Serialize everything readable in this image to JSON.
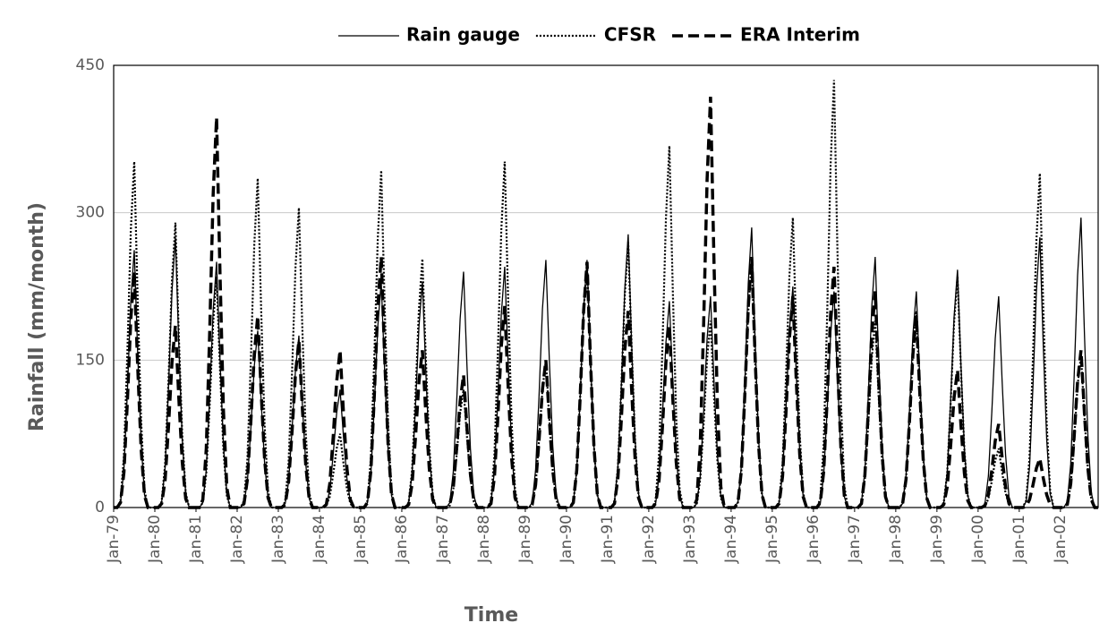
{
  "chart_data": {
    "type": "line",
    "ylabel": "Rainfall (mm/month)",
    "xlabel": "Time",
    "ylim": [
      0,
      450
    ],
    "yticks": [
      0,
      150,
      300,
      450
    ],
    "grid": true,
    "legend": "top",
    "categories": [
      "Jan-79",
      null,
      null,
      null,
      null,
      null,
      null,
      null,
      null,
      null,
      null,
      null,
      "Jan-80",
      null,
      null,
      null,
      null,
      null,
      null,
      null,
      null,
      null,
      null,
      null,
      "Jan-81",
      null,
      null,
      null,
      null,
      null,
      null,
      null,
      null,
      null,
      null,
      null,
      "Jan-82",
      null,
      null,
      null,
      null,
      null,
      null,
      null,
      null,
      null,
      null,
      null,
      "Jan-83",
      null,
      null,
      null,
      null,
      null,
      null,
      null,
      null,
      null,
      null,
      null,
      "Jan-84",
      null,
      null,
      null,
      null,
      null,
      null,
      null,
      null,
      null,
      null,
      null,
      "Jan-85",
      null,
      null,
      null,
      null,
      null,
      null,
      null,
      null,
      null,
      null,
      null,
      "Jan-86",
      null,
      null,
      null,
      null,
      null,
      null,
      null,
      null,
      null,
      null,
      null,
      "Jan-87",
      null,
      null,
      null,
      null,
      null,
      null,
      null,
      null,
      null,
      null,
      null,
      "Jan-88",
      null,
      null,
      null,
      null,
      null,
      null,
      null,
      null,
      null,
      null,
      null,
      "Jan-89",
      null,
      null,
      null,
      null,
      null,
      null,
      null,
      null,
      null,
      null,
      null,
      "Jan-90",
      null,
      null,
      null,
      null,
      null,
      null,
      null,
      null,
      null,
      null,
      null,
      "Jan-91",
      null,
      null,
      null,
      null,
      null,
      null,
      null,
      null,
      null,
      null,
      null,
      "Jan-92",
      null,
      null,
      null,
      null,
      null,
      null,
      null,
      null,
      null,
      null,
      null,
      "Jan-93",
      null,
      null,
      null,
      null,
      null,
      null,
      null,
      null,
      null,
      null,
      null,
      "Jan-94",
      null,
      null,
      null,
      null,
      null,
      null,
      null,
      null,
      null,
      null,
      null,
      "Jan-95",
      null,
      null,
      null,
      null,
      null,
      null,
      null,
      null,
      null,
      null,
      null,
      "Jan-96",
      null,
      null,
      null,
      null,
      null,
      null,
      null,
      null,
      null,
      null,
      null,
      "Jan-97",
      null,
      null,
      null,
      null,
      null,
      null,
      null,
      null,
      null,
      null,
      null,
      "Jan-98",
      null,
      null,
      null,
      null,
      null,
      null,
      null,
      null,
      null,
      null,
      null,
      "Jan-99",
      null,
      null,
      null,
      null,
      null,
      null,
      null,
      null,
      null,
      null,
      null,
      "Jan-00",
      null,
      null,
      null,
      null,
      null,
      null,
      null,
      null,
      null,
      null,
      null,
      "Jan-01",
      null,
      null,
      null,
      null,
      null,
      null,
      null,
      null,
      null,
      null,
      null,
      "Jan-02",
      null,
      null,
      null,
      null,
      null,
      null,
      null,
      null,
      null,
      null,
      null
    ],
    "series": [
      {
        "name": "Rain gauge",
        "color": "#000000",
        "style": "solid",
        "values": [
          0,
          0,
          5,
          39,
          118,
          210,
          262,
          157,
          66,
          13,
          0,
          0,
          0,
          0,
          6,
          41,
          124,
          220,
          275,
          165,
          69,
          14,
          0,
          0,
          0,
          0,
          5,
          38,
          113,
          200,
          250,
          150,
          63,
          13,
          0,
          0,
          0,
          0,
          4,
          27,
          81,
          144,
          180,
          108,
          45,
          9,
          0,
          0,
          0,
          0,
          4,
          26,
          79,
          140,
          175,
          105,
          44,
          9,
          0,
          0,
          0,
          0,
          2,
          18,
          54,
          96,
          120,
          72,
          30,
          6,
          0,
          0,
          0,
          0,
          5,
          35,
          104,
          184,
          230,
          138,
          58,
          12,
          0,
          0,
          0,
          0,
          5,
          35,
          104,
          184,
          230,
          138,
          58,
          12,
          0,
          0,
          0,
          0,
          5,
          36,
          108,
          192,
          240,
          144,
          60,
          12,
          0,
          0,
          0,
          0,
          5,
          37,
          110,
          196,
          245,
          147,
          61,
          12,
          0,
          0,
          0,
          0,
          5,
          38,
          113,
          202,
          252,
          151,
          63,
          13,
          0,
          0,
          0,
          0,
          5,
          38,
          113,
          202,
          252,
          151,
          63,
          13,
          0,
          0,
          0,
          0,
          6,
          42,
          125,
          222,
          278,
          167,
          70,
          14,
          0,
          0,
          0,
          0,
          4,
          32,
          95,
          168,
          210,
          126,
          53,
          11,
          0,
          0,
          0,
          0,
          4,
          32,
          97,
          172,
          215,
          129,
          54,
          11,
          0,
          0,
          0,
          0,
          6,
          43,
          128,
          228,
          285,
          171,
          71,
          14,
          0,
          0,
          0,
          0,
          5,
          34,
          101,
          180,
          225,
          135,
          56,
          11,
          0,
          0,
          0,
          0,
          4,
          33,
          99,
          176,
          220,
          132,
          55,
          11,
          0,
          0,
          0,
          0,
          5,
          38,
          115,
          204,
          255,
          153,
          64,
          13,
          0,
          0,
          0,
          0,
          4,
          33,
          99,
          176,
          220,
          132,
          55,
          11,
          0,
          0,
          0,
          0,
          5,
          36,
          109,
          194,
          242,
          145,
          61,
          12,
          0,
          0,
          0,
          0,
          4,
          32,
          97,
          172,
          215,
          129,
          54,
          11,
          0,
          0,
          0,
          0,
          6,
          41,
          124,
          220,
          275,
          165,
          69,
          14,
          0,
          0,
          0,
          0,
          6,
          44,
          133,
          236,
          295,
          177,
          74,
          15,
          0,
          0
        ]
      },
      {
        "name": "CFSR",
        "color": "#000000",
        "style": "dotted",
        "values": [
          0,
          0,
          7,
          53,
          158,
          282,
          352,
          211,
          88,
          18,
          0,
          0,
          0,
          0,
          6,
          44,
          131,
          232,
          290,
          174,
          73,
          15,
          0,
          0,
          0,
          0,
          5,
          35,
          106,
          188,
          235,
          141,
          59,
          12,
          0,
          0,
          0,
          0,
          7,
          50,
          151,
          268,
          335,
          201,
          84,
          17,
          0,
          0,
          0,
          0,
          6,
          46,
          137,
          244,
          305,
          183,
          76,
          15,
          0,
          0,
          0,
          0,
          2,
          11,
          34,
          60,
          75,
          45,
          19,
          4,
          0,
          0,
          0,
          0,
          7,
          51,
          154,
          274,
          343,
          206,
          86,
          17,
          0,
          0,
          0,
          0,
          5,
          38,
          114,
          202,
          253,
          152,
          63,
          13,
          0,
          0,
          0,
          0,
          2,
          18,
          54,
          96,
          120,
          72,
          30,
          6,
          0,
          0,
          0,
          0,
          7,
          53,
          158,
          282,
          352,
          211,
          88,
          18,
          0,
          0,
          0,
          0,
          3,
          23,
          68,
          120,
          150,
          90,
          38,
          8,
          0,
          0,
          0,
          0,
          5,
          38,
          113,
          200,
          250,
          150,
          63,
          13,
          0,
          0,
          0,
          0,
          5,
          41,
          122,
          216,
          270,
          162,
          68,
          14,
          0,
          0,
          0,
          0,
          7,
          55,
          166,
          294,
          368,
          221,
          92,
          18,
          0,
          0,
          0,
          0,
          4,
          29,
          86,
          152,
          190,
          114,
          48,
          10,
          0,
          0,
          0,
          0,
          5,
          38,
          113,
          200,
          250,
          150,
          63,
          13,
          0,
          0,
          0,
          0,
          6,
          44,
          133,
          236,
          295,
          177,
          74,
          15,
          0,
          0,
          0,
          0,
          9,
          65,
          196,
          348,
          435,
          261,
          109,
          22,
          0,
          0,
          0,
          0,
          4,
          29,
          86,
          152,
          190,
          114,
          48,
          10,
          0,
          0,
          0,
          0,
          4,
          30,
          90,
          160,
          200,
          120,
          50,
          10,
          0,
          0,
          0,
          0,
          5,
          35,
          106,
          188,
          235,
          141,
          59,
          12,
          0,
          0,
          0,
          0,
          1,
          9,
          27,
          48,
          60,
          36,
          15,
          3,
          0,
          0,
          0,
          0,
          7,
          51,
          153,
          272,
          340,
          204,
          85,
          17,
          0,
          0,
          0,
          0,
          3,
          23,
          70,
          124,
          155,
          93,
          39,
          8,
          0,
          0
        ]
      },
      {
        "name": "ERA Interim",
        "color": "#000000",
        "style": "dashed",
        "values": [
          0,
          0,
          5,
          36,
          108,
          192,
          240,
          144,
          60,
          12,
          0,
          0,
          0,
          0,
          4,
          28,
          83,
          148,
          185,
          111,
          46,
          9,
          0,
          0,
          0,
          0,
          8,
          60,
          179,
          318,
          397,
          238,
          99,
          20,
          0,
          0,
          0,
          0,
          4,
          29,
          88,
          156,
          195,
          117,
          49,
          10,
          0,
          0,
          0,
          0,
          3,
          26,
          77,
          136,
          170,
          102,
          43,
          9,
          0,
          0,
          0,
          0,
          3,
          24,
          72,
          128,
          160,
          96,
          40,
          8,
          0,
          0,
          0,
          0,
          5,
          38,
          115,
          204,
          255,
          153,
          64,
          13,
          0,
          0,
          0,
          0,
          3,
          24,
          72,
          128,
          160,
          96,
          40,
          8,
          0,
          0,
          0,
          0,
          3,
          20,
          61,
          108,
          135,
          81,
          34,
          7,
          0,
          0,
          0,
          0,
          4,
          31,
          92,
          164,
          205,
          123,
          51,
          10,
          0,
          0,
          0,
          0,
          3,
          23,
          68,
          120,
          150,
          90,
          38,
          8,
          0,
          0,
          0,
          0,
          5,
          38,
          113,
          200,
          250,
          150,
          63,
          13,
          0,
          0,
          0,
          0,
          4,
          30,
          90,
          160,
          200,
          120,
          50,
          10,
          0,
          0,
          0,
          0,
          4,
          28,
          83,
          148,
          185,
          111,
          46,
          9,
          0,
          0,
          0,
          0,
          8,
          63,
          188,
          334,
          418,
          251,
          105,
          21,
          0,
          0,
          0,
          0,
          5,
          38,
          115,
          204,
          255,
          153,
          64,
          13,
          0,
          0,
          0,
          0,
          4,
          32,
          97,
          172,
          215,
          129,
          54,
          11,
          0,
          0,
          0,
          0,
          5,
          37,
          110,
          196,
          245,
          147,
          61,
          12,
          0,
          0,
          0,
          0,
          4,
          33,
          99,
          176,
          220,
          132,
          55,
          11,
          0,
          0,
          0,
          0,
          4,
          29,
          88,
          156,
          195,
          117,
          49,
          10,
          0,
          0,
          0,
          0,
          3,
          21,
          63,
          112,
          140,
          84,
          35,
          7,
          0,
          0,
          0,
          0,
          2,
          13,
          38,
          68,
          85,
          51,
          21,
          4,
          0,
          0,
          0,
          0,
          1,
          8,
          23,
          40,
          50,
          30,
          13,
          3,
          0,
          0,
          0,
          0,
          3,
          24,
          72,
          128,
          160,
          96,
          40,
          8,
          0,
          0
        ]
      }
    ]
  }
}
